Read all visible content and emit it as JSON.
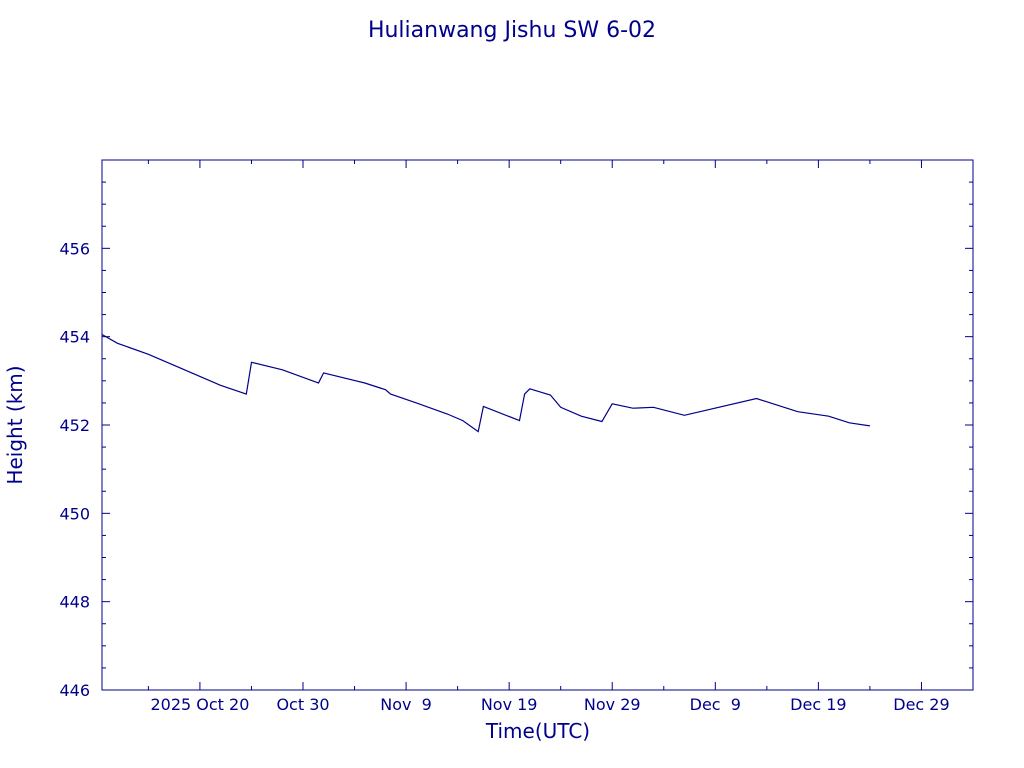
{
  "chart_data": {
    "type": "line",
    "title": "Hulianwang Jishu SW 6-02",
    "xlabel": "Time(UTC)",
    "ylabel": "Height (km)",
    "color": "#00008b",
    "xlim": [
      "2025-10-10T12:00",
      "2026-01-03T00:00"
    ],
    "ylim": [
      446,
      458
    ],
    "yticks": [
      {
        "value": 446,
        "label": "446"
      },
      {
        "value": 448,
        "label": "448"
      },
      {
        "value": 450,
        "label": "450"
      },
      {
        "value": 452,
        "label": "452"
      },
      {
        "value": 454,
        "label": "454"
      },
      {
        "value": 456,
        "label": "456"
      }
    ],
    "xticks": [
      {
        "date": "2025-10-20",
        "label": "2025 Oct 20"
      },
      {
        "date": "2025-10-30",
        "label": "Oct 30"
      },
      {
        "date": "2025-11-09",
        "label": "Nov  9"
      },
      {
        "date": "2025-11-19",
        "label": "Nov 19"
      },
      {
        "date": "2025-11-29",
        "label": "Nov 29"
      },
      {
        "date": "2025-12-09",
        "label": "Dec  9"
      },
      {
        "date": "2025-12-19",
        "label": "Dec 19"
      },
      {
        "date": "2025-12-29",
        "label": "Dec 29"
      }
    ],
    "grid": false,
    "series": [
      {
        "points": [
          [
            "2025-10-10T12:00",
            454.05
          ],
          [
            "2025-10-12T00:00",
            453.85
          ],
          [
            "2025-10-15T00:00",
            453.6
          ],
          [
            "2025-10-18T00:00",
            453.3
          ],
          [
            "2025-10-20T00:00",
            453.1
          ],
          [
            "2025-10-22T00:00",
            452.9
          ],
          [
            "2025-10-24T12:00",
            452.7
          ],
          [
            "2025-10-25T00:00",
            453.42
          ],
          [
            "2025-10-28T00:00",
            453.25
          ],
          [
            "2025-10-31T12:00",
            452.95
          ],
          [
            "2025-11-01T00:00",
            453.18
          ],
          [
            "2025-11-05T00:00",
            452.95
          ],
          [
            "2025-11-07T00:00",
            452.8
          ],
          [
            "2025-11-07T12:00",
            452.7
          ],
          [
            "2025-11-10T00:00",
            452.5
          ],
          [
            "2025-11-13T00:00",
            452.25
          ],
          [
            "2025-11-14T12:00",
            452.1
          ],
          [
            "2025-11-16T00:00",
            451.85
          ],
          [
            "2025-11-16T12:00",
            452.42
          ],
          [
            "2025-11-20T00:00",
            452.1
          ],
          [
            "2025-11-20T12:00",
            452.7
          ],
          [
            "2025-11-21T00:00",
            452.82
          ],
          [
            "2025-11-22T00:00",
            452.75
          ],
          [
            "2025-11-23T00:00",
            452.68
          ],
          [
            "2025-11-24T00:00",
            452.4
          ],
          [
            "2025-11-26T00:00",
            452.2
          ],
          [
            "2025-11-28T00:00",
            452.08
          ],
          [
            "2025-11-29T00:00",
            452.48
          ],
          [
            "2025-12-01T00:00",
            452.38
          ],
          [
            "2025-12-03T00:00",
            452.4
          ],
          [
            "2025-12-06T00:00",
            452.22
          ],
          [
            "2025-12-13T00:00",
            452.6
          ],
          [
            "2025-12-17T00:00",
            452.3
          ],
          [
            "2025-12-20T00:00",
            452.2
          ],
          [
            "2025-12-22T00:00",
            452.05
          ],
          [
            "2025-12-24T00:00",
            451.98
          ]
        ]
      }
    ]
  }
}
